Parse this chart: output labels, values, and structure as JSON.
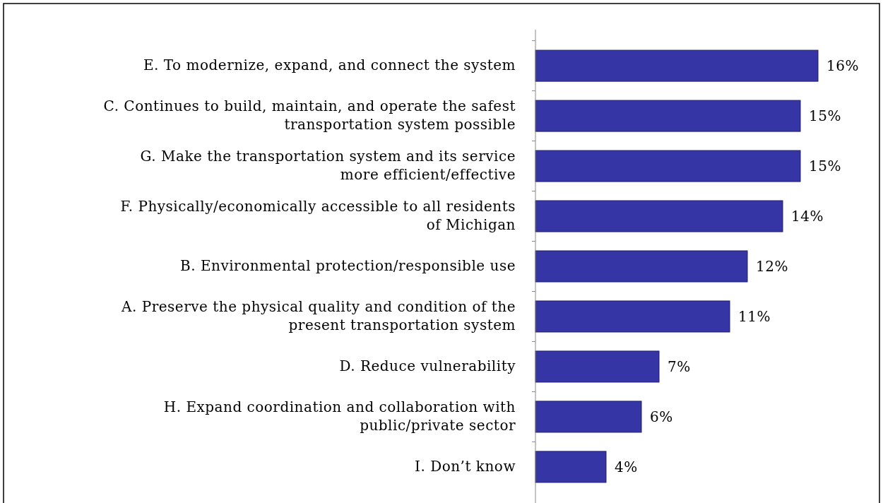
{
  "chart_data": {
    "type": "bar",
    "orientation": "horizontal",
    "categories": [
      "E. To modernize, expand, and connect the system",
      "C. Continues to build, maintain, and operate the safest transportation system possible",
      "G. Make the transportation system and its service more efficient/effective",
      "F. Physically/economically accessible to all residents of Michigan",
      "B. Environmental protection/responsible use",
      "A. Preserve the physical quality and condition of the present transportation system",
      "D. Reduce vulnerability",
      "H. Expand coordination and collaboration with public/private sector",
      "I. Don’t know"
    ],
    "values": [
      16,
      15,
      15,
      14,
      12,
      11,
      7,
      6,
      4
    ],
    "value_labels": [
      "16%",
      "15%",
      "15%",
      "14%",
      "12%",
      "11%",
      "7%",
      "6%",
      "4%"
    ],
    "color": "#3535a6"
  }
}
